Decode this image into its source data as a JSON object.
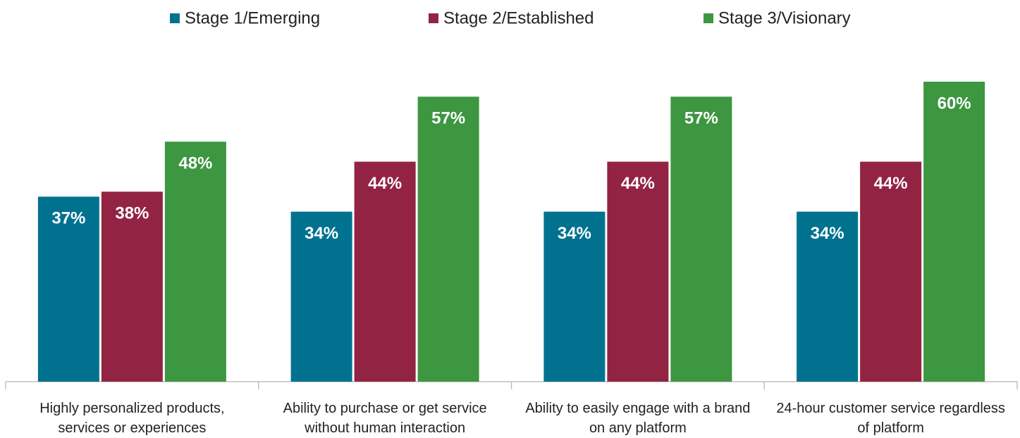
{
  "chart_data": {
    "type": "bar",
    "categories": [
      "Highly personalized products, services or experiences",
      "Ability to purchase or get service without human interaction",
      "Ability to easily engage with a brand on any platform",
      "24-hour customer service regardless of platform"
    ],
    "series": [
      {
        "name": "Stage 1/Emerging",
        "color": "#00728f",
        "values": [
          37,
          34,
          34,
          34
        ],
        "value_labels": [
          "37%",
          "34%",
          "34%",
          "34%"
        ]
      },
      {
        "name": "Stage 2/Established",
        "color": "#922343",
        "values": [
          38,
          44,
          44,
          44
        ],
        "value_labels": [
          "38%",
          "44%",
          "44%",
          "44%"
        ]
      },
      {
        "name": "Stage 3/Visionary",
        "color": "#3d9640",
        "values": [
          48,
          57,
          57,
          60
        ],
        "value_labels": [
          "48%",
          "57%",
          "57%",
          "60%"
        ]
      }
    ],
    "legend": "top"
  }
}
